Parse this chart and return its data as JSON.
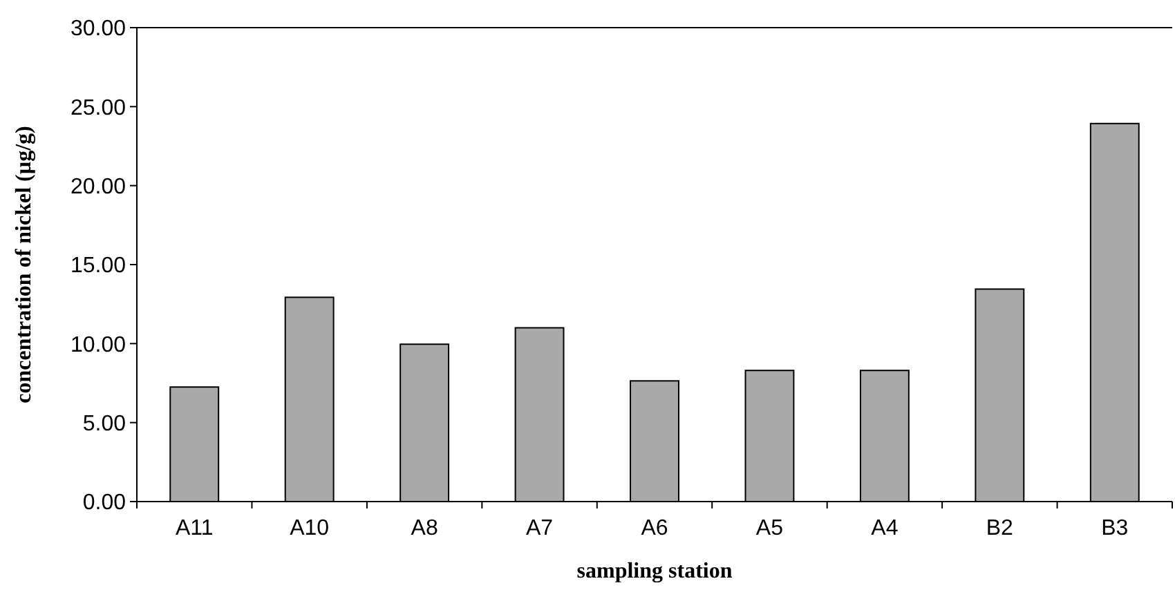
{
  "chart_data": {
    "type": "bar",
    "xlabel": "sampling station",
    "ylabel": "concentration of nickel (µg/g)",
    "categories": [
      "A11",
      "A10",
      "A8",
      "A7",
      "A6",
      "A5",
      "A4",
      "B2",
      "B3"
    ],
    "values": [
      7.25,
      12.93,
      9.96,
      11.0,
      7.64,
      8.3,
      8.3,
      13.45,
      23.93
    ],
    "color": "#a9a9a9",
    "ylim": [
      0,
      30
    ],
    "yticks": [
      {
        "value": 0,
        "label": "0.00"
      },
      {
        "value": 5,
        "label": "5.00"
      },
      {
        "value": 10,
        "label": "10.00"
      },
      {
        "value": 15,
        "label": "15.00"
      },
      {
        "value": 20,
        "label": "20.00"
      },
      {
        "value": 25,
        "label": "25.00"
      },
      {
        "value": 30,
        "label": "30.00"
      }
    ],
    "grid": false
  }
}
